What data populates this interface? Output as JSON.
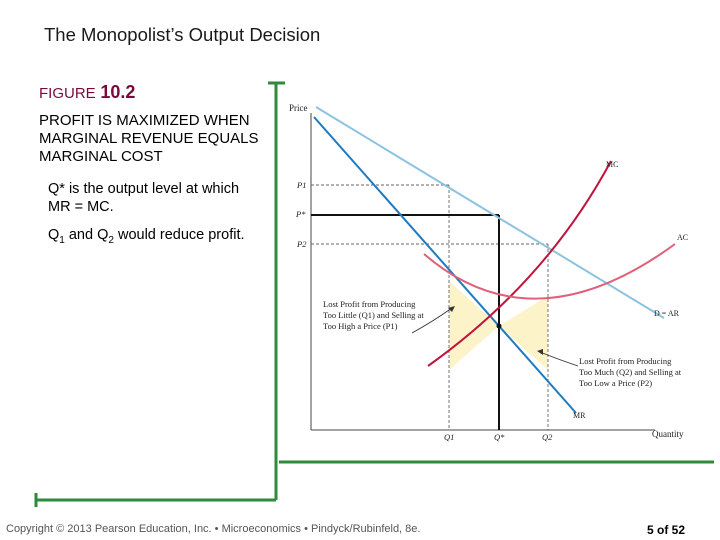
{
  "slide": {
    "title": "The Monopolist’s Output Decision",
    "figure_word": "FIGURE",
    "figure_number": "10.2",
    "figure_caption": "PROFIT IS MAXIMIZED WHEN MARGINAL REVENUE EQUALS MARGINAL COST",
    "bullet1": "Q* is the output level at which MR = MC.",
    "bullet2": {
      "prefix": "Q",
      "sub1": "1",
      "middle": " and Q",
      "sub2": "2",
      "suffix": " would reduce profit."
    }
  },
  "diagram": {
    "y_axis_label": "Price",
    "x_axis_label": "Quantity",
    "price_labels": {
      "p1": "P1",
      "pstar": "P*",
      "p2": "P2"
    },
    "quantity_labels": {
      "q1": "Q1",
      "qstar": "Q*",
      "q2": "Q2"
    },
    "curves": {
      "mc": "MC",
      "ac": "AC",
      "demand": "D = AR",
      "mr": "MR"
    },
    "annotation_left": [
      "Lost Profit from Producing",
      "Too Little (Q1) and Selling at",
      "Too High a Price (P1)"
    ],
    "annotation_right": [
      "Lost Profit from Producing",
      "Too Much (Q2) and Selling at",
      "Too Low a Price (P2)"
    ],
    "colors": {
      "demand": "#8cc3e0",
      "mr": "#1f7bbf",
      "mc": "#c0143c",
      "ac": "#e0607a",
      "shade": "#fdf3c8",
      "frame": "#2e8b3a"
    }
  },
  "footer": {
    "copyright": "Copyright © 2013 Pearson Education, Inc. • Microeconomics • Pindyck/Rubinfeld, 8e.",
    "page": "5 of 52"
  }
}
